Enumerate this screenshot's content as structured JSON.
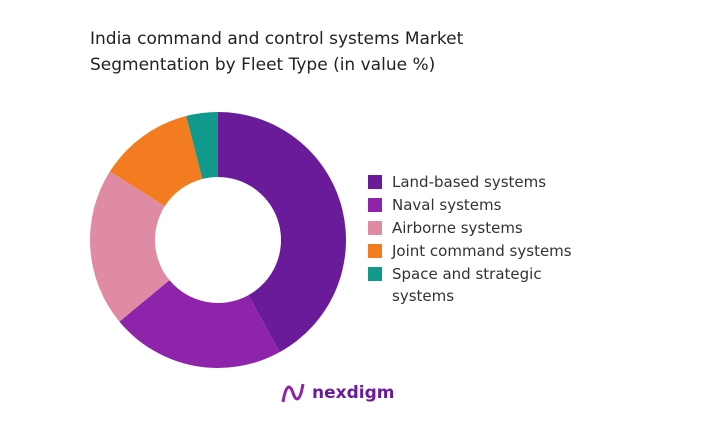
{
  "chart_data": {
    "type": "donut",
    "title": "India command and control systems Market Segmentation by Fleet Type (in value %)",
    "categories": [
      "Land-based systems",
      "Naval systems",
      "Airborne systems",
      "Joint command systems",
      "Space and strategic systems"
    ],
    "values": [
      42,
      22,
      20,
      12,
      4
    ],
    "colors": [
      "#6a1b9a",
      "#8e24aa",
      "#df8ba3",
      "#f47c20",
      "#119a8b"
    ],
    "legend": "right"
  },
  "logo": "nexdigm"
}
